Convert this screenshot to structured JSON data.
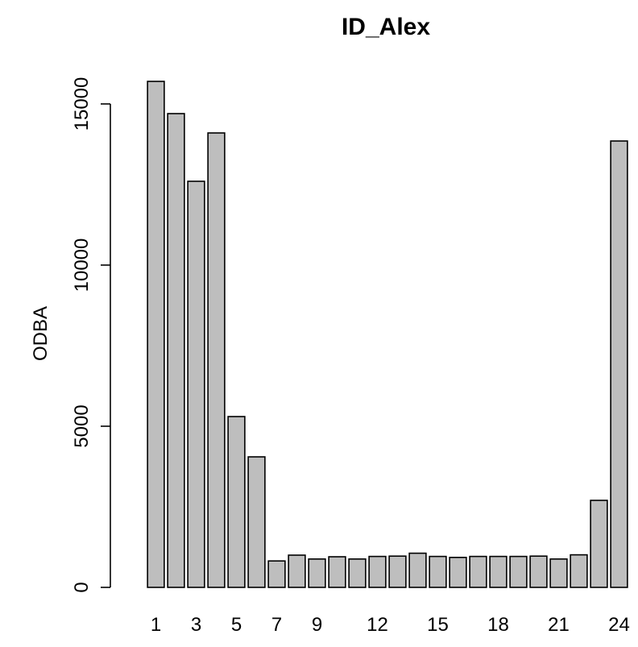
{
  "chart_data": {
    "type": "bar",
    "title": "ID_Alex",
    "xlabel": "",
    "ylabel": "ODBA",
    "ylim": [
      0,
      15000
    ],
    "yticks": [
      0,
      5000,
      10000,
      15000
    ],
    "categories": [
      "1",
      "2",
      "3",
      "4",
      "5",
      "6",
      "7",
      "8",
      "9",
      "10",
      "11",
      "12",
      "13",
      "14",
      "15",
      "16",
      "17",
      "18",
      "19",
      "20",
      "21",
      "22",
      "23",
      "24"
    ],
    "x_tick_labels": [
      "1",
      "3",
      "5",
      "7",
      "9",
      "12",
      "15",
      "18",
      "21",
      "24"
    ],
    "values": [
      15700,
      14700,
      12600,
      14100,
      5300,
      4050,
      820,
      1000,
      880,
      950,
      880,
      960,
      970,
      1060,
      960,
      930,
      960,
      960,
      960,
      970,
      880,
      1010,
      2700,
      13850
    ],
    "grid": false,
    "legend": "none",
    "bar_color": "#bebebe",
    "edge_color": "#000000"
  }
}
